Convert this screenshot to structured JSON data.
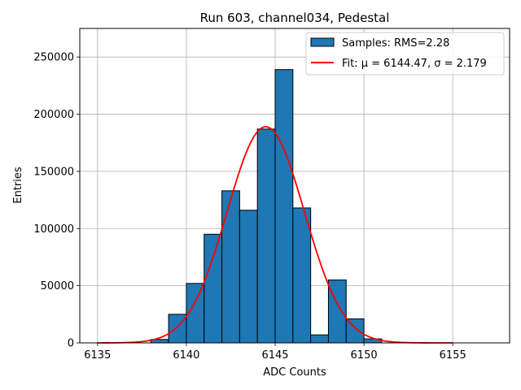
{
  "chart_data": {
    "type": "bar",
    "title": "Run 603, channel034, Pedestal",
    "xlabel": "ADC Counts",
    "ylabel": "Entries",
    "xlim": [
      6134.0,
      6158.2
    ],
    "ylim": [
      0,
      275000
    ],
    "xticks": [
      6135,
      6140,
      6145,
      6150,
      6155
    ],
    "xtick_labels": [
      "6135",
      "6140",
      "6145",
      "6150",
      "6155"
    ],
    "yticks": [
      0,
      50000,
      100000,
      150000,
      200000,
      250000
    ],
    "ytick_labels": [
      "0",
      "50000",
      "100000",
      "150000",
      "200000",
      "250000"
    ],
    "grid": true,
    "legend_position": "top-right",
    "bar_color": "#1f77b4",
    "fit_color": "#ff0000",
    "bin_width": 1,
    "bins": [
      {
        "left": 6138,
        "value": 3000
      },
      {
        "left": 6139,
        "value": 25000
      },
      {
        "left": 6140,
        "value": 52000
      },
      {
        "left": 6141,
        "value": 95000
      },
      {
        "left": 6142,
        "value": 133000
      },
      {
        "left": 6143,
        "value": 116000
      },
      {
        "left": 6144,
        "value": 187000
      },
      {
        "left": 6145,
        "value": 239000
      },
      {
        "left": 6146,
        "value": 118000
      },
      {
        "left": 6147,
        "value": 7000
      },
      {
        "left": 6148,
        "value": 55000
      },
      {
        "left": 6149,
        "value": 21000
      },
      {
        "left": 6150,
        "value": 3500
      }
    ],
    "fit": {
      "mu": 6144.47,
      "sigma": 2.179,
      "amplitude": 189000,
      "x_range": [
        6135,
        6155
      ]
    },
    "legend": [
      {
        "label": "Samples: RMS=2.28",
        "kind": "patch"
      },
      {
        "label": "Fit: μ = 6144.47, σ = 2.179",
        "kind": "line"
      }
    ]
  }
}
